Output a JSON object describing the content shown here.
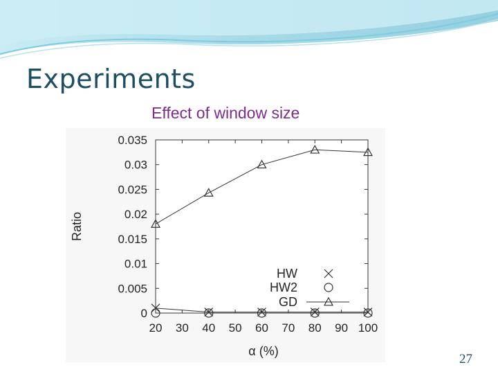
{
  "slide": {
    "title": "Experiments",
    "page_number": "27"
  },
  "colors": {
    "title": "#1d4e63",
    "chart_title": "#7b2c8c",
    "banner_dark": "#5fbcd3",
    "banner_light": "#cdeef6",
    "series": "#333333"
  },
  "chart_data": {
    "type": "line",
    "title": "Effect of window size",
    "xlabel": "α (%)",
    "ylabel": "Ratio",
    "x": [
      20,
      40,
      60,
      80,
      100
    ],
    "xlim": [
      20,
      100
    ],
    "ylim": [
      0,
      0.035
    ],
    "xticks": [
      "20",
      "30",
      "40",
      "50",
      "60",
      "70",
      "80",
      "90",
      "100"
    ],
    "yticks": [
      "0",
      "0.005",
      "0.01",
      "0.015",
      "0.02",
      "0.025",
      "0.03",
      "0.035"
    ],
    "grid": false,
    "legend_position": "bottom-right",
    "series": [
      {
        "name": "HW",
        "marker": "cross",
        "values": [
          0.001,
          0.0002,
          0.0002,
          0.0002,
          0.0002
        ]
      },
      {
        "name": "HW2",
        "marker": "circle",
        "values": [
          0.0,
          0.0,
          0.0,
          0.0,
          0.0
        ]
      },
      {
        "name": "GD",
        "marker": "triangle",
        "values": [
          0.018,
          0.0243,
          0.03,
          0.033,
          0.0325
        ]
      }
    ]
  }
}
